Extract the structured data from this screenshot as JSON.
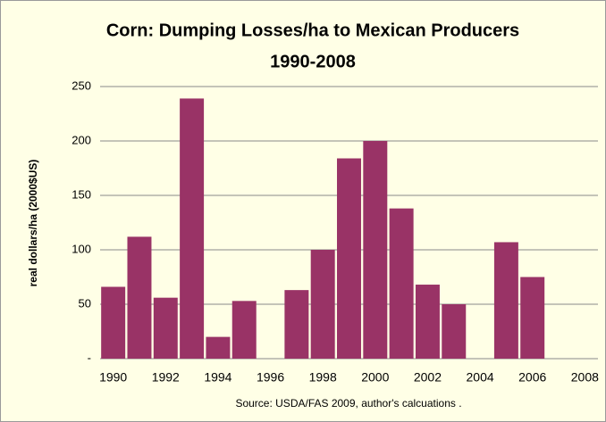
{
  "chart_data": {
    "type": "bar",
    "title": [
      "Corn: Dumping Losses/ha to Mexican Producers",
      "1990-2008"
    ],
    "y_label": "real dollars/ha (2000$US)",
    "source": "Source: USDA/FAS 2009, author's calcuations .",
    "categories": [
      "1990",
      null,
      "1992",
      null,
      "1994",
      null,
      "1996",
      null,
      "1998",
      null,
      "2000",
      null,
      "2002",
      null,
      "2004",
      null,
      "2006",
      null,
      "2008"
    ],
    "values": [
      66,
      112,
      56,
      239,
      20,
      53,
      0,
      63,
      100,
      184,
      200,
      138,
      68,
      50,
      0,
      107,
      75,
      0,
      0
    ],
    "color": "#993366",
    "ylim": [
      0,
      250
    ],
    "yticks": [
      {
        "value": 0,
        "label": "-"
      },
      50,
      100,
      150,
      200,
      250
    ],
    "grid": true
  }
}
